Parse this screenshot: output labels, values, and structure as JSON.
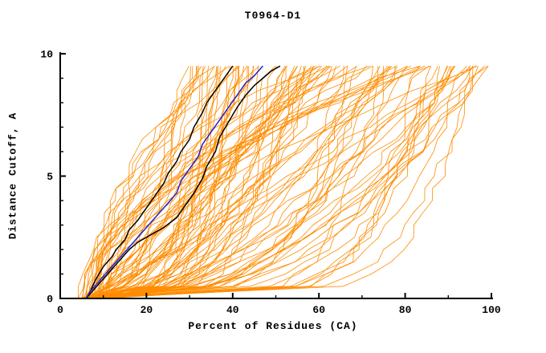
{
  "chart_data": {
    "type": "line",
    "title": "T0964-D1",
    "xlabel": "Percent of Residues (CA)",
    "ylabel": "Distance Cutoff, A",
    "xlim": [
      0,
      100
    ],
    "ylim": [
      0,
      10
    ],
    "xticks": [
      0,
      20,
      40,
      60,
      80,
      100
    ],
    "x_minor_ticks": [
      10,
      30,
      50,
      70,
      90
    ],
    "yticks": [
      0,
      5,
      10
    ],
    "y_minor_ticks": [
      1,
      2,
      3,
      4,
      6,
      7,
      8,
      9
    ],
    "grid": false,
    "legend": "none",
    "colors": {
      "ensemble": "#ff8c00",
      "model_black": "#000000",
      "model_blue": "#2222cc",
      "axis": "#000000",
      "background": "#ffffff"
    },
    "highlighted_series": [
      {
        "name": "best-model-black-1",
        "color": "#000000",
        "points": [
          [
            6,
            0
          ],
          [
            7,
            0.3
          ],
          [
            8,
            0.7
          ],
          [
            9,
            1.0
          ],
          [
            10,
            1.3
          ],
          [
            12,
            1.7
          ],
          [
            13,
            2.0
          ],
          [
            15,
            2.4
          ],
          [
            16,
            2.8
          ],
          [
            18,
            3.2
          ],
          [
            20,
            3.7
          ],
          [
            22,
            4.2
          ],
          [
            24,
            4.7
          ],
          [
            25,
            5.1
          ],
          [
            27,
            5.6
          ],
          [
            28,
            6.0
          ],
          [
            30,
            6.5
          ],
          [
            31,
            7.0
          ],
          [
            33,
            7.6
          ],
          [
            34,
            8.0
          ],
          [
            36,
            8.5
          ],
          [
            38,
            9.0
          ],
          [
            40,
            9.5
          ]
        ]
      },
      {
        "name": "best-model-black-2",
        "color": "#000000",
        "points": [
          [
            6,
            0
          ],
          [
            8,
            0.4
          ],
          [
            10,
            0.8
          ],
          [
            12,
            1.2
          ],
          [
            14,
            1.6
          ],
          [
            16,
            2.0
          ],
          [
            18,
            2.3
          ],
          [
            21,
            2.6
          ],
          [
            24,
            2.9
          ],
          [
            27,
            3.3
          ],
          [
            29,
            3.8
          ],
          [
            31,
            4.3
          ],
          [
            33,
            4.9
          ],
          [
            34,
            5.4
          ],
          [
            36,
            6.0
          ],
          [
            37,
            6.6
          ],
          [
            39,
            7.2
          ],
          [
            41,
            7.8
          ],
          [
            43,
            8.3
          ],
          [
            45,
            8.7
          ],
          [
            47,
            9.0
          ],
          [
            49,
            9.3
          ],
          [
            51,
            9.5
          ]
        ]
      },
      {
        "name": "highlight-model-blue",
        "color": "#2222cc",
        "points": [
          [
            6,
            0
          ],
          [
            7,
            0.3
          ],
          [
            9,
            0.7
          ],
          [
            11,
            1.1
          ],
          [
            13,
            1.5
          ],
          [
            15,
            1.9
          ],
          [
            17,
            2.3
          ],
          [
            19,
            2.7
          ],
          [
            21,
            3.1
          ],
          [
            23,
            3.5
          ],
          [
            25,
            3.9
          ],
          [
            27,
            4.3
          ],
          [
            28,
            4.8
          ],
          [
            30,
            5.3
          ],
          [
            32,
            5.8
          ],
          [
            33,
            6.3
          ],
          [
            35,
            6.8
          ],
          [
            37,
            7.3
          ],
          [
            39,
            7.8
          ],
          [
            41,
            8.3
          ],
          [
            43,
            8.8
          ],
          [
            45,
            9.1
          ],
          [
            47,
            9.5
          ]
        ]
      }
    ],
    "ensemble": {
      "name": "server-model-curves",
      "color": "#ff8c00",
      "count": 110,
      "seed": 1337,
      "start_x_range": [
        4,
        12
      ],
      "end_x_range": [
        28,
        100
      ],
      "end_x_bias_exp": 0.8,
      "shape_exp_range": [
        0.12,
        2.8
      ],
      "y_top": 9.5,
      "y_step": 0.5,
      "jitter": 1.5
    }
  }
}
